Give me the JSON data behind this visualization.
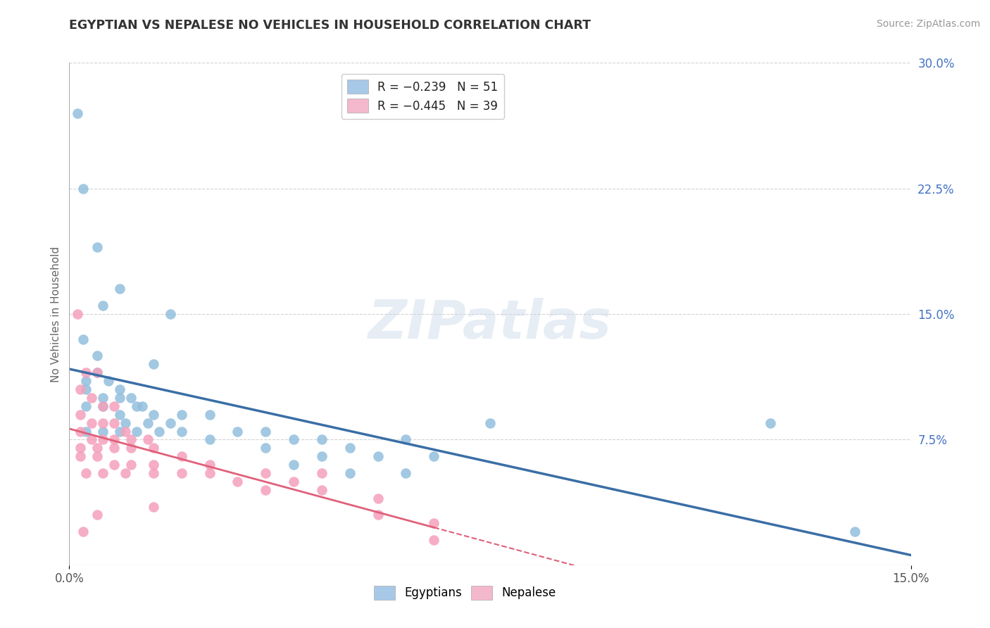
{
  "title": "EGYPTIAN VS NEPALESE NO VEHICLES IN HOUSEHOLD CORRELATION CHART",
  "source": "Source: ZipAtlas.com",
  "ylabel": "No Vehicles in Household",
  "xlim": [
    0.0,
    15.0
  ],
  "ylim": [
    0.0,
    30.0
  ],
  "xtick_positions": [
    0.0,
    15.0
  ],
  "xtick_labels": [
    "0.0%",
    "15.0%"
  ],
  "ytick_right_positions": [
    7.5,
    15.0,
    22.5,
    30.0
  ],
  "ytick_right_labels": [
    "7.5%",
    "15.0%",
    "22.5%",
    "30.0%"
  ],
  "watermark": "ZIPatlas",
  "legend_label_egyptians": "Egyptians",
  "legend_label_nepalese": "Nepalese",
  "egyptian_color": "#92bfdd",
  "nepalese_color": "#f4a0bb",
  "egyptian_line_color": "#3a6ea5",
  "nepalese_line_color": "#e0607a",
  "background_color": "#ffffff",
  "grid_color": "#c8c8c8",
  "title_color": "#333333",
  "axis_label_color": "#666666",
  "right_tick_color": "#4472c4",
  "legend_box_color_eg": "#a8c8e8",
  "legend_box_color_np": "#f4b8cc",
  "egyptian_points": [
    [
      0.15,
      27.0
    ],
    [
      0.25,
      22.5
    ],
    [
      0.5,
      19.0
    ],
    [
      0.9,
      16.5
    ],
    [
      0.6,
      15.5
    ],
    [
      1.8,
      15.0
    ],
    [
      0.25,
      13.5
    ],
    [
      0.5,
      12.5
    ],
    [
      1.5,
      12.0
    ],
    [
      0.3,
      11.0
    ],
    [
      0.5,
      11.5
    ],
    [
      0.7,
      11.0
    ],
    [
      0.9,
      10.5
    ],
    [
      0.3,
      10.5
    ],
    [
      0.6,
      10.0
    ],
    [
      0.9,
      10.0
    ],
    [
      1.1,
      10.0
    ],
    [
      1.3,
      9.5
    ],
    [
      0.3,
      9.5
    ],
    [
      0.6,
      9.5
    ],
    [
      0.9,
      9.0
    ],
    [
      1.2,
      9.5
    ],
    [
      1.5,
      9.0
    ],
    [
      2.0,
      9.0
    ],
    [
      2.5,
      9.0
    ],
    [
      1.0,
      8.5
    ],
    [
      1.4,
      8.5
    ],
    [
      1.8,
      8.5
    ],
    [
      0.3,
      8.0
    ],
    [
      0.6,
      8.0
    ],
    [
      0.9,
      8.0
    ],
    [
      1.2,
      8.0
    ],
    [
      1.6,
      8.0
    ],
    [
      2.0,
      8.0
    ],
    [
      2.5,
      7.5
    ],
    [
      3.0,
      8.0
    ],
    [
      3.5,
      8.0
    ],
    [
      4.0,
      7.5
    ],
    [
      4.5,
      7.5
    ],
    [
      5.0,
      7.0
    ],
    [
      6.0,
      7.5
    ],
    [
      3.5,
      7.0
    ],
    [
      4.5,
      6.5
    ],
    [
      5.5,
      6.5
    ],
    [
      6.5,
      6.5
    ],
    [
      4.0,
      6.0
    ],
    [
      5.0,
      5.5
    ],
    [
      6.0,
      5.5
    ],
    [
      7.5,
      8.5
    ],
    [
      12.5,
      8.5
    ],
    [
      14.0,
      2.0
    ]
  ],
  "nepalese_points": [
    [
      0.15,
      15.0
    ],
    [
      0.3,
      11.5
    ],
    [
      0.5,
      11.5
    ],
    [
      0.2,
      10.5
    ],
    [
      0.4,
      10.0
    ],
    [
      0.6,
      9.5
    ],
    [
      0.8,
      9.5
    ],
    [
      0.2,
      9.0
    ],
    [
      0.4,
      8.5
    ],
    [
      0.6,
      8.5
    ],
    [
      0.8,
      8.5
    ],
    [
      1.0,
      8.0
    ],
    [
      0.2,
      8.0
    ],
    [
      0.4,
      7.5
    ],
    [
      0.6,
      7.5
    ],
    [
      0.8,
      7.5
    ],
    [
      1.1,
      7.5
    ],
    [
      1.4,
      7.5
    ],
    [
      0.2,
      7.0
    ],
    [
      0.5,
      7.0
    ],
    [
      0.8,
      7.0
    ],
    [
      1.1,
      7.0
    ],
    [
      1.5,
      7.0
    ],
    [
      0.2,
      6.5
    ],
    [
      0.5,
      6.5
    ],
    [
      0.8,
      6.0
    ],
    [
      1.1,
      6.0
    ],
    [
      1.5,
      6.0
    ],
    [
      2.0,
      6.5
    ],
    [
      2.5,
      6.0
    ],
    [
      0.3,
      5.5
    ],
    [
      0.6,
      5.5
    ],
    [
      1.0,
      5.5
    ],
    [
      1.5,
      5.5
    ],
    [
      2.0,
      5.5
    ],
    [
      2.5,
      5.5
    ],
    [
      3.5,
      5.5
    ],
    [
      4.5,
      5.5
    ],
    [
      3.0,
      5.0
    ],
    [
      4.0,
      5.0
    ],
    [
      3.5,
      4.5
    ],
    [
      4.5,
      4.5
    ],
    [
      5.5,
      4.0
    ],
    [
      1.5,
      3.5
    ],
    [
      0.5,
      3.0
    ],
    [
      5.5,
      3.0
    ],
    [
      0.25,
      2.0
    ],
    [
      6.5,
      1.5
    ],
    [
      6.5,
      2.5
    ]
  ],
  "nepalese_line_solid_xmax": 6.5,
  "grid_yticks": [
    7.5,
    15.0,
    22.5,
    30.0
  ]
}
